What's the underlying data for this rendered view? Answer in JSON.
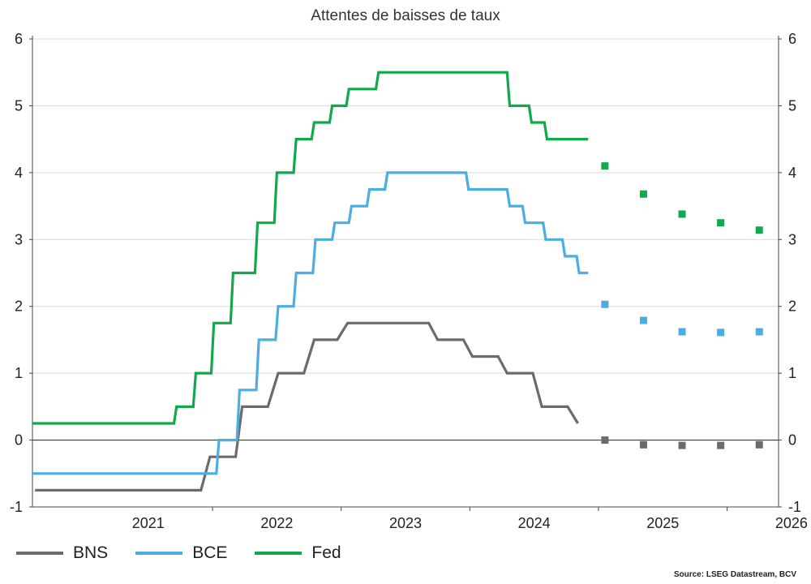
{
  "chart_data": {
    "type": "line",
    "title": "Attentes de baisses de taux",
    "xlabel": "",
    "ylabel": "",
    "ylim": [
      -1,
      6
    ],
    "xlim": [
      2020.6,
      2026.4
    ],
    "yticks": [
      -1,
      0,
      1,
      2,
      3,
      4,
      5,
      6
    ],
    "xticks": [
      "2021",
      "2022",
      "2023",
      "2024",
      "2025",
      "2026"
    ],
    "grid": "horizontal",
    "legend_position": "bottom-left",
    "source": "Source: LSEG Datastream, BCV",
    "colors": {
      "BNS": "#6b6b6b",
      "BCE": "#4aaee0",
      "Fed": "#12a84c"
    },
    "series": [
      {
        "name": "BNS",
        "step_points": [
          [
            2020.62,
            -0.75
          ],
          [
            2021.91,
            -0.75
          ],
          [
            2021.98,
            -0.25
          ],
          [
            2022.18,
            -0.25
          ],
          [
            2022.23,
            0.5
          ],
          [
            2022.43,
            0.5
          ],
          [
            2022.51,
            1.0
          ],
          [
            2022.71,
            1.0
          ],
          [
            2022.79,
            1.5
          ],
          [
            2022.97,
            1.5
          ],
          [
            2023.05,
            1.75
          ],
          [
            2023.68,
            1.75
          ],
          [
            2023.75,
            1.5
          ],
          [
            2023.95,
            1.5
          ],
          [
            2024.02,
            1.25
          ],
          [
            2024.22,
            1.25
          ],
          [
            2024.29,
            1.0
          ],
          [
            2024.49,
            1.0
          ],
          [
            2024.56,
            0.5
          ],
          [
            2024.76,
            0.5
          ],
          [
            2024.84,
            0.25
          ]
        ]
      },
      {
        "name": "BCE",
        "step_points": [
          [
            2020.6,
            -0.5
          ],
          [
            2022.03,
            -0.5
          ],
          [
            2022.05,
            0.0
          ],
          [
            2022.19,
            0.0
          ],
          [
            2022.21,
            0.75
          ],
          [
            2022.34,
            0.75
          ],
          [
            2022.36,
            1.5
          ],
          [
            2022.49,
            1.5
          ],
          [
            2022.51,
            2.0
          ],
          [
            2022.63,
            2.0
          ],
          [
            2022.65,
            2.5
          ],
          [
            2022.78,
            2.5
          ],
          [
            2022.8,
            3.0
          ],
          [
            2022.93,
            3.0
          ],
          [
            2022.95,
            3.25
          ],
          [
            2023.06,
            3.25
          ],
          [
            2023.08,
            3.5
          ],
          [
            2023.2,
            3.5
          ],
          [
            2023.22,
            3.75
          ],
          [
            2023.34,
            3.75
          ],
          [
            2023.36,
            4.0
          ],
          [
            2023.97,
            4.0
          ],
          [
            2023.99,
            3.75
          ],
          [
            2024.29,
            3.75
          ],
          [
            2024.31,
            3.5
          ],
          [
            2024.41,
            3.5
          ],
          [
            2024.43,
            3.25
          ],
          [
            2024.57,
            3.25
          ],
          [
            2024.59,
            3.0
          ],
          [
            2024.72,
            3.0
          ],
          [
            2024.74,
            2.75
          ],
          [
            2024.83,
            2.75
          ],
          [
            2024.85,
            2.5
          ],
          [
            2024.92,
            2.5
          ]
        ]
      },
      {
        "name": "Fed",
        "step_points": [
          [
            2020.6,
            0.25
          ],
          [
            2021.7,
            0.25
          ],
          [
            2021.72,
            0.5
          ],
          [
            2021.85,
            0.5
          ],
          [
            2021.87,
            1.0
          ],
          [
            2021.99,
            1.0
          ],
          [
            2022.01,
            1.75
          ],
          [
            2022.14,
            1.75
          ],
          [
            2022.16,
            2.5
          ],
          [
            2022.33,
            2.5
          ],
          [
            2022.35,
            3.25
          ],
          [
            2022.48,
            3.25
          ],
          [
            2022.5,
            4.0
          ],
          [
            2022.63,
            4.0
          ],
          [
            2022.65,
            4.5
          ],
          [
            2022.77,
            4.5
          ],
          [
            2022.79,
            4.75
          ],
          [
            2022.91,
            4.75
          ],
          [
            2022.93,
            5.0
          ],
          [
            2023.04,
            5.0
          ],
          [
            2023.06,
            5.25
          ],
          [
            2023.27,
            5.25
          ],
          [
            2023.29,
            5.5
          ],
          [
            2024.29,
            5.5
          ],
          [
            2024.31,
            5.0
          ],
          [
            2024.46,
            5.0
          ],
          [
            2024.48,
            4.75
          ],
          [
            2024.58,
            4.75
          ],
          [
            2024.6,
            4.5
          ],
          [
            2024.92,
            4.5
          ]
        ]
      }
    ],
    "projections": [
      {
        "name": "BNS",
        "x": [
          2025.05,
          2025.35,
          2025.65,
          2025.95,
          2026.25
        ],
        "y": [
          0.0,
          -0.07,
          -0.08,
          -0.08,
          -0.07
        ]
      },
      {
        "name": "BCE",
        "x": [
          2025.05,
          2025.35,
          2025.65,
          2025.95,
          2026.25
        ],
        "y": [
          2.03,
          1.79,
          1.62,
          1.61,
          1.62
        ]
      },
      {
        "name": "Fed",
        "x": [
          2025.05,
          2025.35,
          2025.65,
          2025.95,
          2026.25
        ],
        "y": [
          4.1,
          3.68,
          3.38,
          3.25,
          3.14
        ]
      }
    ]
  }
}
